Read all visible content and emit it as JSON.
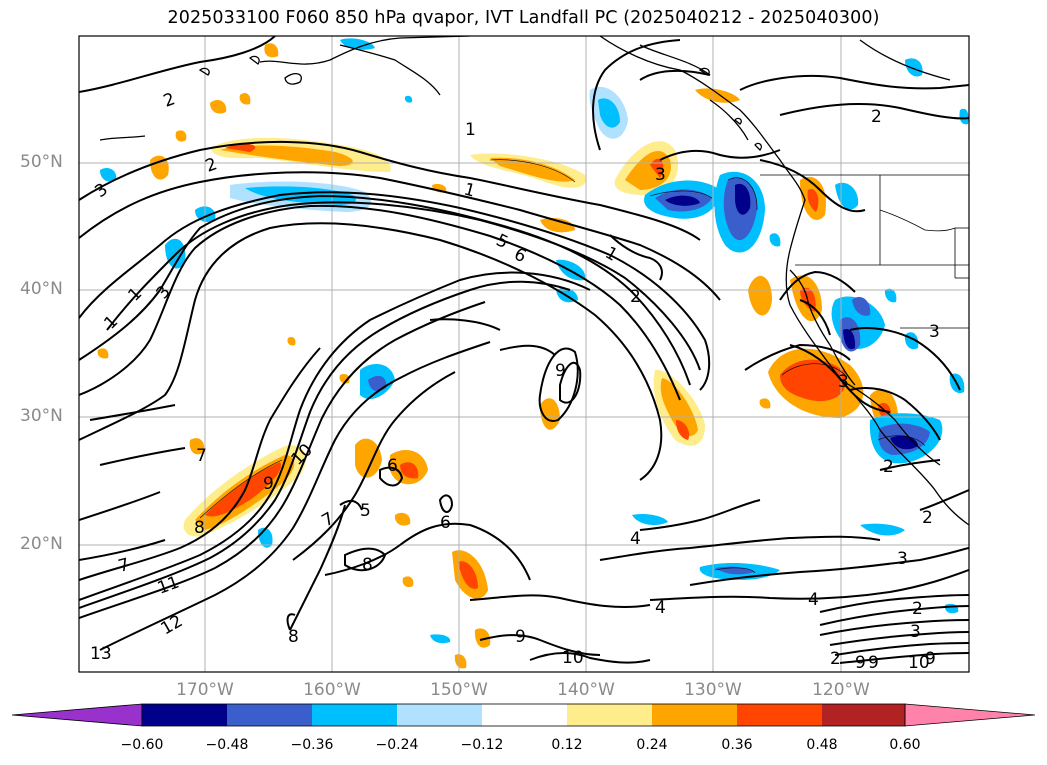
{
  "title": "2025033100 F060 850 hPa qvapor, IVT Landfall PC (2025040212 - 2025040300)",
  "lat_labels": [
    "50°N",
    "40°N",
    "30°N",
    "20°N"
  ],
  "lon_labels": [
    "170°W",
    "160°W",
    "150°W",
    "140°W",
    "130°W",
    "120°W"
  ],
  "colorbar": {
    "ticks": [
      "−0.60",
      "−0.48",
      "−0.36",
      "−0.24",
      "−0.12",
      "0.12",
      "0.24",
      "0.36",
      "0.48",
      "0.60"
    ],
    "colors": [
      "#9932cc",
      "#00008b",
      "#3a5fcd",
      "#00bfff",
      "#b0e2ff",
      "#ffffff",
      "#ffec8b",
      "#ffa500",
      "#ff4500",
      "#b22222",
      "#ff82ab"
    ]
  },
  "contour_labels": [
    "1",
    "2",
    "3",
    "4",
    "5",
    "6",
    "7",
    "8",
    "9",
    "10",
    "11",
    "12",
    "13"
  ]
}
